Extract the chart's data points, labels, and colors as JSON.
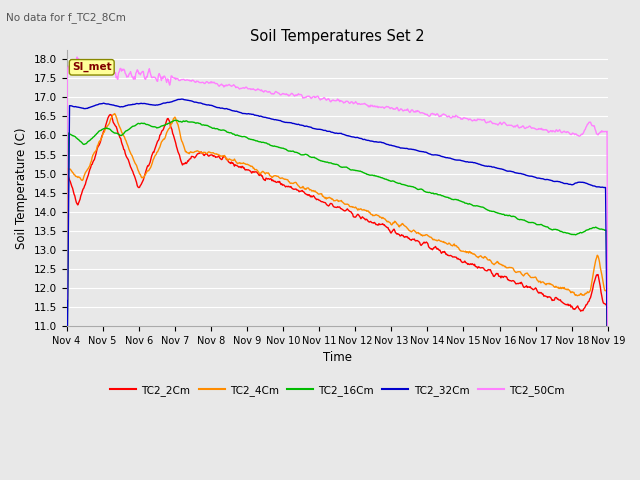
{
  "title": "Soil Temperatures Set 2",
  "xlabel": "Time",
  "ylabel": "Soil Temperature (C)",
  "top_left_text": "No data for f_TC2_8Cm",
  "annotation_text": "SI_met",
  "ylim": [
    11.0,
    18.25
  ],
  "yticks": [
    11.0,
    11.5,
    12.0,
    12.5,
    13.0,
    13.5,
    14.0,
    14.5,
    15.0,
    15.5,
    16.0,
    16.5,
    17.0,
    17.5,
    18.0
  ],
  "x_labels": [
    "Nov 4",
    "Nov 5",
    "Nov 6",
    "Nov 7",
    "Nov 8",
    "Nov 9",
    "Nov 10",
    "Nov 11",
    "Nov 12",
    "Nov 13",
    "Nov 14",
    "Nov 15",
    "Nov 16",
    "Nov 17",
    "Nov 18",
    "Nov 19"
  ],
  "colors": {
    "TC2_2Cm": "#ff0000",
    "TC2_4Cm": "#ff8c00",
    "TC2_16Cm": "#00bb00",
    "TC2_32Cm": "#0000cc",
    "TC2_50Cm": "#ff80ff"
  },
  "bg_color": "#e8e8e8",
  "grid_color": "#ffffff",
  "fig_bg": "#e8e8e8"
}
